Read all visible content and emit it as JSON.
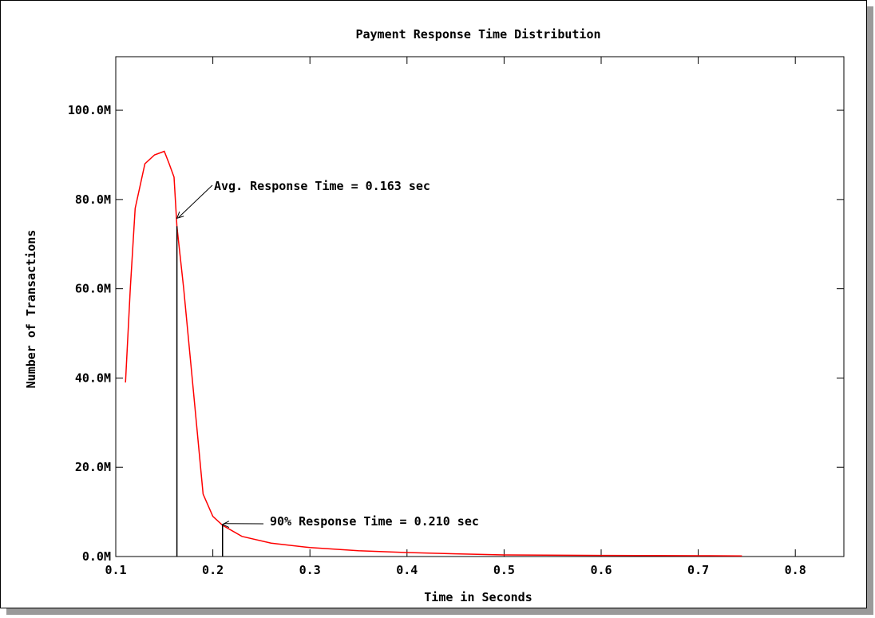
{
  "chart_data": {
    "type": "line",
    "title": "Payment Response Time Distribution",
    "xlabel": "Time in Seconds",
    "ylabel": "Number of Transactions",
    "xlim": [
      0.1,
      0.85
    ],
    "ylim": [
      0,
      112
    ],
    "x_ticks": [
      0.1,
      0.2,
      0.3,
      0.4,
      0.5,
      0.6,
      0.7,
      0.8
    ],
    "x_tick_labels": [
      "0.1",
      "0.2",
      "0.3",
      "0.4",
      "0.5",
      "0.6",
      "0.7",
      "0.8"
    ],
    "y_ticks": [
      0,
      20,
      40,
      60,
      80,
      100
    ],
    "y_tick_labels": [
      "0.0M",
      "20.0M",
      "40.0M",
      "60.0M",
      "80.0M",
      "100.0M"
    ],
    "grid": false,
    "series": [
      {
        "color": "#ff0000",
        "x": [
          0.11,
          0.115,
          0.12,
          0.13,
          0.14,
          0.15,
          0.155,
          0.16,
          0.163,
          0.17,
          0.18,
          0.19,
          0.2,
          0.21,
          0.23,
          0.26,
          0.3,
          0.35,
          0.4,
          0.45,
          0.5,
          0.6,
          0.7,
          0.745
        ],
        "y": [
          39,
          60,
          78,
          88,
          90,
          90.8,
          88,
          85,
          74,
          60,
          37,
          14,
          9,
          7,
          4.5,
          3,
          2,
          1.3,
          0.9,
          0.6,
          0.35,
          0.25,
          0.18,
          0.15
        ]
      }
    ],
    "markers": [
      {
        "x": 0.163,
        "y": 74,
        "label": "Avg. Response Time = 0.163 sec"
      },
      {
        "x": 0.21,
        "y": 7.2,
        "label": "90% Response Time = 0.210 sec"
      }
    ]
  }
}
